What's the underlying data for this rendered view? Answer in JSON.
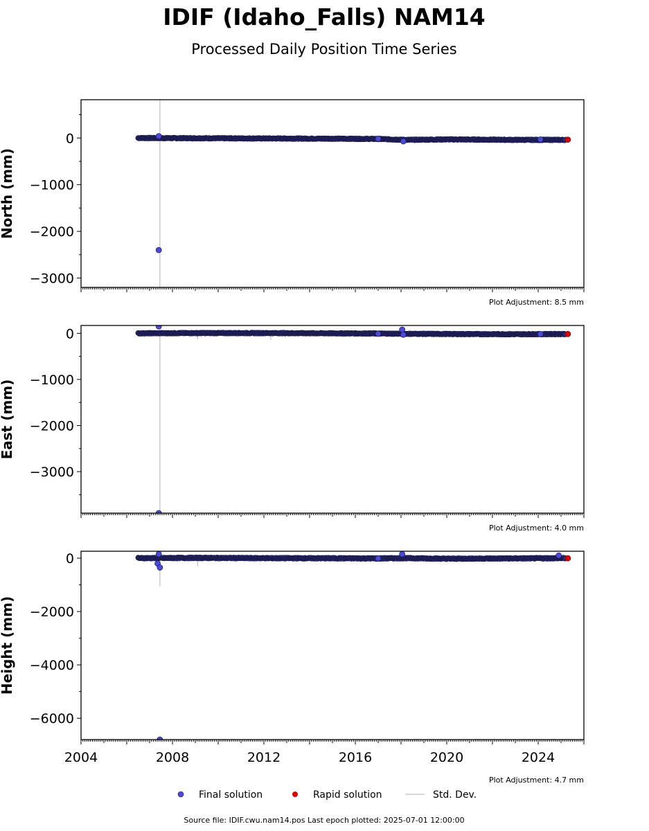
{
  "figure": {
    "title": "IDIF (Idaho_Falls) NAM14",
    "subtitle": "Processed Daily Position Time Series",
    "source_note": "Source file: IDIF.cwu.nam14.pos  Last epoch plotted: 2025-07-01 12:00:00"
  },
  "legend": {
    "final": "Final solution",
    "rapid": "Rapid solution",
    "std": "Std. Dev."
  },
  "colors": {
    "final_fill": "#4a4adf",
    "final_edge": "#1a1a4a",
    "rapid": "#e00000",
    "std": "#cccccc",
    "axis": "#000000"
  },
  "chart_data": [
    {
      "type": "scatter",
      "name": "north",
      "ylabel": "North (mm)",
      "adjustment": "Plot Adjustment: 8.5 mm",
      "xlim": [
        2004,
        2026
      ],
      "ylim": [
        -3200,
        820
      ],
      "yticks": [
        0,
        -1000,
        -2000,
        -3000
      ],
      "ytick_labels": [
        "0",
        "−1000",
        "−2000",
        "−3000"
      ],
      "series_range": [
        2006.5,
        2025.2
      ],
      "baseline": [
        [
          2006.5,
          0
        ],
        [
          2009,
          -5
        ],
        [
          2012,
          -10
        ],
        [
          2015,
          -15
        ],
        [
          2017,
          -20
        ],
        [
          2018.2,
          -40
        ],
        [
          2020,
          -30
        ],
        [
          2023,
          -40
        ],
        [
          2025.2,
          -40
        ]
      ],
      "band": 20,
      "outliers": [
        [
          2007.4,
          40
        ],
        [
          2007.4,
          -2400
        ],
        [
          2017.0,
          -15
        ],
        [
          2018.1,
          -70
        ],
        [
          2024.1,
          -30
        ]
      ],
      "rapid": [
        [
          2025.3,
          -35
        ]
      ],
      "std_lines": [
        [
          2007.45,
          -3200,
          820
        ],
        [
          2009.1,
          -30,
          40
        ]
      ]
    },
    {
      "type": "scatter",
      "name": "east",
      "ylabel": "East (mm)",
      "adjustment": "Plot Adjustment: 4.0 mm",
      "xlim": [
        2004,
        2026
      ],
      "ylim": [
        -3900,
        170
      ],
      "yticks": [
        0,
        -1000,
        -2000,
        -3000
      ],
      "ytick_labels": [
        "0",
        "−1000",
        "−2000",
        "−3000"
      ],
      "series_range": [
        2006.5,
        2025.2
      ],
      "baseline": [
        [
          2006.5,
          0
        ],
        [
          2009,
          5
        ],
        [
          2012,
          5
        ],
        [
          2015,
          0
        ],
        [
          2017,
          -5
        ],
        [
          2018.2,
          -10
        ],
        [
          2020,
          -15
        ],
        [
          2023,
          -20
        ],
        [
          2025.2,
          -15
        ]
      ],
      "band": 20,
      "outliers": [
        [
          2007.4,
          150
        ],
        [
          2007.4,
          -3900
        ],
        [
          2017.0,
          -10
        ],
        [
          2018.05,
          80
        ],
        [
          2018.1,
          -30
        ],
        [
          2024.1,
          -15
        ]
      ],
      "rapid": [
        [
          2025.3,
          -15
        ]
      ],
      "std_lines": [
        [
          2007.45,
          -3900,
          170
        ],
        [
          2009.1,
          -130,
          60
        ],
        [
          2012.3,
          -140,
          60
        ]
      ]
    },
    {
      "type": "scatter",
      "name": "height",
      "ylabel": "Height (mm)",
      "adjustment": "Plot Adjustment: 4.7 mm",
      "xlim": [
        2004,
        2026
      ],
      "ylim": [
        -6800,
        260
      ],
      "yticks": [
        0,
        -2000,
        -4000,
        -6000
      ],
      "ytick_labels": [
        "0",
        "−2000",
        "−4000",
        "−6000"
      ],
      "xticks": [
        2004,
        2008,
        2012,
        2016,
        2020,
        2024
      ],
      "xtick_labels": [
        "2004",
        "2008",
        "2012",
        "2016",
        "2020",
        "2024"
      ],
      "series_range": [
        2006.5,
        2025.2
      ],
      "baseline": [
        [
          2006.5,
          0
        ],
        [
          2009,
          10
        ],
        [
          2012,
          0
        ],
        [
          2015,
          -5
        ],
        [
          2017,
          -10
        ],
        [
          2018.2,
          0
        ],
        [
          2020,
          -20
        ],
        [
          2023,
          -10
        ],
        [
          2025.2,
          0
        ]
      ],
      "band": 40,
      "outliers": [
        [
          2007.4,
          150
        ],
        [
          2007.35,
          -200
        ],
        [
          2007.45,
          -350
        ],
        [
          2017.0,
          -10
        ],
        [
          2018.05,
          150
        ],
        [
          2024.9,
          100
        ],
        [
          2007.45,
          -6800
        ]
      ],
      "rapid": [
        [
          2025.3,
          -5
        ]
      ],
      "std_lines": [
        [
          2007.45,
          -1050,
          260
        ],
        [
          2009.1,
          -300,
          60
        ]
      ]
    }
  ]
}
